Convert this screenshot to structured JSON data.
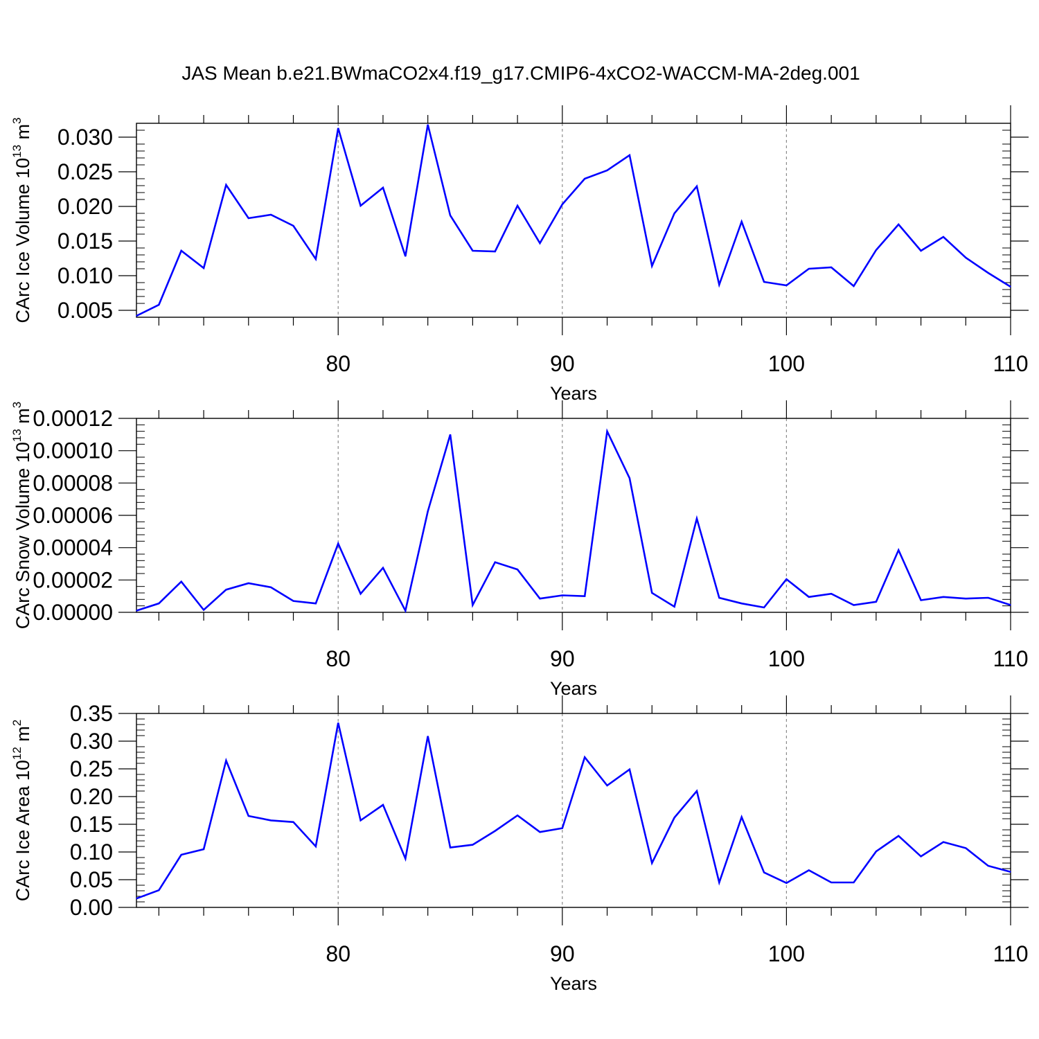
{
  "title": "JAS Mean b.e21.BWmaCO2x4.f19_g17.CMIP6-4xCO2-WACCM-MA-2deg.001",
  "chart_data": [
    {
      "type": "line",
      "ylabel": {
        "prefix": "CArc Ice Volume 10",
        "exp1": "13",
        "mid": " m",
        "exp2": "3"
      },
      "xlabel": "Years",
      "xlim": [
        71,
        110
      ],
      "ylim": [
        0.004,
        0.032
      ],
      "yticks": [
        "0.005",
        "0.010",
        "0.015",
        "0.020",
        "0.025",
        "0.030"
      ],
      "yticks_values": [
        0.005,
        0.01,
        0.015,
        0.02,
        0.025,
        0.03
      ],
      "xticks": [
        "80",
        "90",
        "100",
        "110"
      ],
      "xticks_values": [
        80,
        90,
        100,
        110
      ],
      "grid": "dashed vertical at major x ticks",
      "series": [
        {
          "color": "#0000ff",
          "x": [
            71,
            72,
            73,
            74,
            75,
            76,
            77,
            78,
            79,
            80,
            81,
            82,
            83,
            84,
            85,
            86,
            87,
            88,
            89,
            90,
            91,
            92,
            93,
            94,
            95,
            96,
            97,
            98,
            99,
            100,
            101,
            102,
            103,
            104,
            105,
            106,
            107,
            108,
            109,
            110
          ],
          "values": [
            0.0042,
            0.0058,
            0.0136,
            0.0111,
            0.0231,
            0.0183,
            0.0188,
            0.0172,
            0.0124,
            0.0313,
            0.0201,
            0.0227,
            0.0128,
            0.0318,
            0.0187,
            0.0136,
            0.0135,
            0.0201,
            0.0147,
            0.0203,
            0.024,
            0.0252,
            0.0274,
            0.0114,
            0.019,
            0.0229,
            0.0087,
            0.0178,
            0.0091,
            0.0086,
            0.011,
            0.0112,
            0.0085,
            0.0137,
            0.0174,
            0.0136,
            0.0156,
            0.0126,
            0.0104,
            0.0084
          ]
        }
      ]
    },
    {
      "type": "line",
      "ylabel": {
        "prefix": "CArc Snow Volume 10",
        "exp1": "13",
        "mid": " m",
        "exp2": "3"
      },
      "xlabel": "Years",
      "xlim": [
        71,
        110
      ],
      "ylim": [
        0,
        0.00012
      ],
      "yticks": [
        "0.00000",
        "0.00002",
        "0.00004",
        "0.00006",
        "0.00008",
        "0.00010",
        "0.00012"
      ],
      "yticks_values": [
        0,
        2e-05,
        4e-05,
        6e-05,
        8e-05,
        0.0001,
        0.00012
      ],
      "xticks": [
        "80",
        "90",
        "100",
        "110"
      ],
      "xticks_values": [
        80,
        90,
        100,
        110
      ],
      "grid": "dashed vertical at major x ticks",
      "series": [
        {
          "color": "#0000ff",
          "x": [
            71,
            72,
            73,
            74,
            75,
            76,
            77,
            78,
            79,
            80,
            81,
            82,
            83,
            84,
            85,
            86,
            87,
            88,
            89,
            90,
            91,
            92,
            93,
            94,
            95,
            96,
            97,
            98,
            99,
            100,
            101,
            102,
            103,
            104,
            105,
            106,
            107,
            108,
            109,
            110
          ],
          "values": [
            1e-06,
            5.5e-06,
            1.9e-05,
            1.5e-06,
            1.4e-05,
            1.8e-05,
            1.55e-05,
            7e-06,
            5.5e-06,
            4.25e-05,
            1.15e-05,
            2.75e-05,
            1e-06,
            6.25e-05,
            0.00011,
            4.5e-06,
            3.1e-05,
            2.65e-05,
            8.5e-06,
            1.05e-05,
            1e-05,
            0.000112,
            8.3e-05,
            1.2e-05,
            3.5e-06,
            5.8e-05,
            9e-06,
            5.5e-06,
            3e-06,
            2.05e-05,
            9.5e-06,
            1.15e-05,
            4.5e-06,
            6.5e-06,
            3.85e-05,
            7.5e-06,
            9.5e-06,
            8.5e-06,
            9e-06,
            4.5e-06
          ]
        }
      ]
    },
    {
      "type": "line",
      "ylabel": {
        "prefix": "CArc Ice Area 10",
        "exp1": "12",
        "mid": " m",
        "exp2": "2"
      },
      "xlabel": "Years",
      "xlim": [
        71,
        110
      ],
      "ylim": [
        0,
        0.35
      ],
      "yticks": [
        "0.00",
        "0.05",
        "0.10",
        "0.15",
        "0.20",
        "0.25",
        "0.30",
        "0.35"
      ],
      "yticks_values": [
        0,
        0.05,
        0.1,
        0.15,
        0.2,
        0.25,
        0.3,
        0.35
      ],
      "xticks": [
        "80",
        "90",
        "100",
        "110"
      ],
      "xticks_values": [
        80,
        90,
        100,
        110
      ],
      "grid": "dashed vertical at major x ticks",
      "series": [
        {
          "color": "#0000ff",
          "x": [
            71,
            72,
            73,
            74,
            75,
            76,
            77,
            78,
            79,
            80,
            81,
            82,
            83,
            84,
            85,
            86,
            87,
            88,
            89,
            90,
            91,
            92,
            93,
            94,
            95,
            96,
            97,
            98,
            99,
            100,
            101,
            102,
            103,
            104,
            105,
            106,
            107,
            108,
            109,
            110
          ],
          "values": [
            0.016,
            0.031,
            0.095,
            0.105,
            0.265,
            0.165,
            0.157,
            0.154,
            0.11,
            0.333,
            0.157,
            0.185,
            0.088,
            0.309,
            0.108,
            0.113,
            0.138,
            0.166,
            0.136,
            0.143,
            0.271,
            0.22,
            0.249,
            0.08,
            0.162,
            0.21,
            0.045,
            0.163,
            0.063,
            0.044,
            0.067,
            0.045,
            0.045,
            0.101,
            0.129,
            0.092,
            0.118,
            0.107,
            0.075,
            0.064
          ]
        }
      ]
    }
  ]
}
